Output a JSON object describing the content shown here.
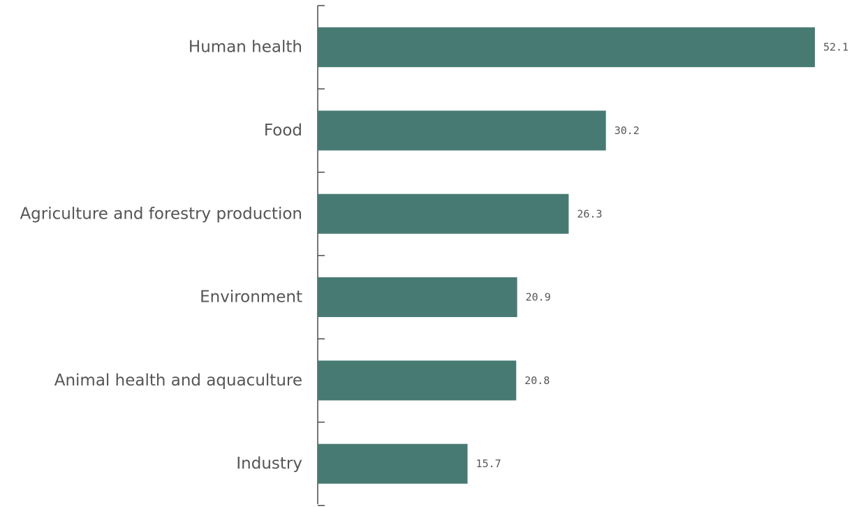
{
  "chart_data": {
    "type": "bar",
    "orientation": "horizontal",
    "categories": [
      "Human health",
      "Food",
      "Agriculture and forestry production",
      "Environment",
      "Animal health and aquaculture",
      "Industry"
    ],
    "values": [
      52.1,
      30.2,
      26.3,
      20.9,
      20.8,
      15.7
    ],
    "title": "",
    "xlabel": "",
    "ylabel": "",
    "xlim": [
      0,
      52.1
    ],
    "grid": false,
    "legend": "none",
    "bar_color": "#477a73"
  }
}
